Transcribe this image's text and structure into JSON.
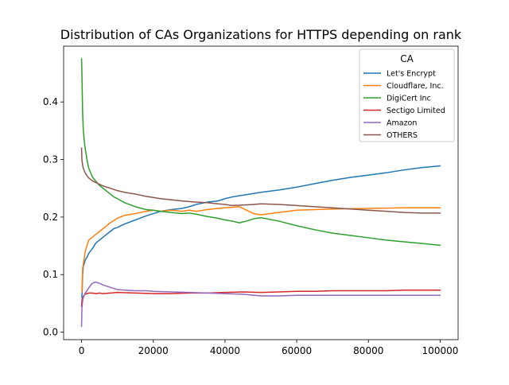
{
  "chart_data": {
    "type": "line",
    "title": "Distribution of CAs Organizations for HTTPS depending on rank",
    "xlabel": "",
    "ylabel": "",
    "xlim": [
      -5000,
      105000
    ],
    "ylim": [
      -0.013,
      0.497
    ],
    "xticks": [
      0,
      20000,
      40000,
      60000,
      80000,
      100000
    ],
    "xtick_labels": [
      "0",
      "20000",
      "40000",
      "60000",
      "80000",
      "100000"
    ],
    "yticks": [
      0.0,
      0.1,
      0.2,
      0.3,
      0.4
    ],
    "ytick_labels": [
      "0.0",
      "0.1",
      "0.2",
      "0.3",
      "0.4"
    ],
    "grid": false,
    "legend": {
      "title": "CA",
      "placement": "top-right"
    },
    "series": [
      {
        "name": "Let's Encrypt",
        "color": "#1f77b4",
        "x": [
          100,
          300,
          500,
          800,
          1000,
          1500,
          2000,
          3000,
          4000,
          5000,
          6000,
          7000,
          8000,
          9000,
          10000,
          12000,
          15000,
          18000,
          20000,
          22000,
          25000,
          28000,
          30000,
          32000,
          35000,
          38000,
          40000,
          42000,
          45000,
          48000,
          50000,
          55000,
          60000,
          65000,
          70000,
          75000,
          80000,
          85000,
          90000,
          95000,
          100000
        ],
        "y": [
          0.06,
          0.1,
          0.115,
          0.12,
          0.125,
          0.13,
          0.137,
          0.145,
          0.155,
          0.16,
          0.165,
          0.17,
          0.175,
          0.18,
          0.182,
          0.188,
          0.195,
          0.202,
          0.206,
          0.21,
          0.213,
          0.215,
          0.218,
          0.222,
          0.226,
          0.228,
          0.232,
          0.235,
          0.238,
          0.241,
          0.243,
          0.247,
          0.252,
          0.258,
          0.264,
          0.269,
          0.273,
          0.277,
          0.282,
          0.286,
          0.289
        ]
      },
      {
        "name": "Cloudflare, Inc.",
        "color": "#ff7f0e",
        "x": [
          100,
          300,
          500,
          800,
          1000,
          1500,
          2000,
          3000,
          4000,
          5000,
          6000,
          7000,
          8000,
          10000,
          12000,
          15000,
          18000,
          20000,
          22000,
          25000,
          28000,
          30000,
          32000,
          35000,
          38000,
          40000,
          42000,
          44000,
          46000,
          48000,
          50000,
          55000,
          60000,
          65000,
          70000,
          80000,
          90000,
          100000
        ],
        "y": [
          0.07,
          0.11,
          0.12,
          0.13,
          0.14,
          0.15,
          0.16,
          0.165,
          0.17,
          0.175,
          0.18,
          0.185,
          0.19,
          0.198,
          0.203,
          0.206,
          0.21,
          0.212,
          0.21,
          0.212,
          0.21,
          0.212,
          0.21,
          0.213,
          0.215,
          0.216,
          0.217,
          0.218,
          0.212,
          0.206,
          0.204,
          0.208,
          0.212,
          0.213,
          0.214,
          0.215,
          0.216,
          0.216
        ]
      },
      {
        "name": "DigiCert Inc",
        "color": "#2ca02c",
        "x": [
          0,
          100,
          300,
          500,
          800,
          1000,
          1500,
          2000,
          3000,
          4000,
          5000,
          6000,
          7000,
          8000,
          9000,
          10000,
          12000,
          15000,
          18000,
          20000,
          22000,
          25000,
          28000,
          30000,
          32000,
          35000,
          38000,
          40000,
          42000,
          44000,
          46000,
          48000,
          50000,
          55000,
          60000,
          65000,
          70000,
          75000,
          80000,
          85000,
          90000,
          95000,
          100000
        ],
        "y": [
          0.475,
          0.45,
          0.38,
          0.35,
          0.33,
          0.32,
          0.3,
          0.285,
          0.27,
          0.262,
          0.255,
          0.25,
          0.245,
          0.24,
          0.235,
          0.232,
          0.225,
          0.218,
          0.213,
          0.212,
          0.21,
          0.208,
          0.206,
          0.207,
          0.205,
          0.201,
          0.198,
          0.195,
          0.193,
          0.19,
          0.193,
          0.197,
          0.199,
          0.193,
          0.185,
          0.178,
          0.172,
          0.168,
          0.164,
          0.16,
          0.157,
          0.154,
          0.151
        ]
      },
      {
        "name": "Sectigo Limited",
        "color": "#d62728",
        "x": [
          0,
          100,
          300,
          500,
          800,
          1000,
          1500,
          2000,
          3000,
          4000,
          5000,
          6000,
          8000,
          10000,
          15000,
          20000,
          25000,
          30000,
          35000,
          40000,
          45000,
          50000,
          55000,
          60000,
          65000,
          70000,
          75000,
          80000,
          85000,
          90000,
          95000,
          100000
        ],
        "y": [
          0.045,
          0.055,
          0.06,
          0.062,
          0.065,
          0.066,
          0.067,
          0.068,
          0.068,
          0.067,
          0.068,
          0.067,
          0.068,
          0.069,
          0.068,
          0.067,
          0.067,
          0.068,
          0.068,
          0.069,
          0.07,
          0.069,
          0.07,
          0.071,
          0.071,
          0.072,
          0.072,
          0.072,
          0.072,
          0.073,
          0.073,
          0.073
        ]
      },
      {
        "name": "Amazon",
        "color": "#9467bd",
        "x": [
          0,
          100,
          300,
          500,
          800,
          1000,
          1500,
          2000,
          3000,
          4000,
          5000,
          6000,
          7000,
          8000,
          10000,
          12000,
          15000,
          18000,
          20000,
          25000,
          30000,
          35000,
          40000,
          45000,
          50000,
          55000,
          60000,
          65000,
          70000,
          75000,
          80000,
          85000,
          90000,
          95000,
          100000
        ],
        "y": [
          0.01,
          0.04,
          0.055,
          0.06,
          0.065,
          0.068,
          0.072,
          0.077,
          0.085,
          0.087,
          0.085,
          0.082,
          0.08,
          0.078,
          0.074,
          0.073,
          0.072,
          0.072,
          0.071,
          0.07,
          0.069,
          0.068,
          0.067,
          0.066,
          0.063,
          0.063,
          0.064,
          0.064,
          0.064,
          0.064,
          0.064,
          0.064,
          0.064,
          0.064,
          0.064
        ]
      },
      {
        "name": "OTHERS",
        "color": "#8c564b",
        "x": [
          0,
          100,
          300,
          500,
          800,
          1000,
          1500,
          2000,
          3000,
          4000,
          5000,
          6000,
          8000,
          10000,
          12000,
          15000,
          18000,
          20000,
          22000,
          25000,
          28000,
          30000,
          32000,
          35000,
          38000,
          40000,
          42000,
          45000,
          48000,
          50000,
          55000,
          60000,
          65000,
          70000,
          75000,
          80000,
          85000,
          90000,
          95000,
          100000
        ],
        "y": [
          0.32,
          0.3,
          0.29,
          0.285,
          0.28,
          0.277,
          0.272,
          0.268,
          0.263,
          0.26,
          0.257,
          0.254,
          0.25,
          0.246,
          0.243,
          0.24,
          0.236,
          0.234,
          0.232,
          0.23,
          0.228,
          0.227,
          0.226,
          0.225,
          0.223,
          0.222,
          0.22,
          0.221,
          0.222,
          0.223,
          0.222,
          0.22,
          0.218,
          0.216,
          0.214,
          0.212,
          0.21,
          0.208,
          0.207,
          0.207
        ]
      }
    ]
  }
}
